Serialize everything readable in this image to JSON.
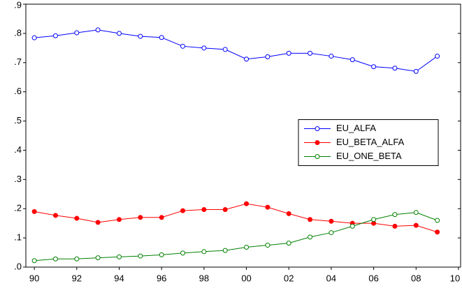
{
  "chart_data": {
    "type": "line",
    "x": [
      1990,
      1991,
      1992,
      1993,
      1994,
      1995,
      1996,
      1997,
      1998,
      1999,
      2000,
      2001,
      2002,
      2003,
      2004,
      2005,
      2006,
      2007,
      2008,
      2009
    ],
    "series": [
      {
        "name": "EU_ALFA",
        "color": "#0000ff",
        "marker": "open",
        "values": [
          0.785,
          0.792,
          0.802,
          0.812,
          0.8,
          0.79,
          0.786,
          0.756,
          0.75,
          0.745,
          0.712,
          0.72,
          0.732,
          0.732,
          0.722,
          0.71,
          0.686,
          0.681,
          0.67,
          0.722
        ]
      },
      {
        "name": "EU_BETA_ALFA",
        "color": "#ff0000",
        "marker": "filled",
        "values": [
          0.19,
          0.177,
          0.167,
          0.153,
          0.163,
          0.17,
          0.17,
          0.193,
          0.197,
          0.197,
          0.217,
          0.205,
          0.183,
          0.163,
          0.157,
          0.15,
          0.15,
          0.14,
          0.143,
          0.12
        ]
      },
      {
        "name": "EU_ONE_BETA",
        "color": "#008000",
        "marker": "open",
        "values": [
          0.022,
          0.028,
          0.028,
          0.032,
          0.035,
          0.038,
          0.042,
          0.048,
          0.053,
          0.057,
          0.068,
          0.075,
          0.082,
          0.103,
          0.118,
          0.14,
          0.163,
          0.18,
          0.187,
          0.16
        ]
      }
    ],
    "xlim": [
      1989.6,
      2010.1
    ],
    "xticks": [
      {
        "value": 1990,
        "label": "90"
      },
      {
        "value": 1992,
        "label": "92"
      },
      {
        "value": 1994,
        "label": "94"
      },
      {
        "value": 1996,
        "label": "96"
      },
      {
        "value": 1998,
        "label": "98"
      },
      {
        "value": 2000,
        "label": "00"
      },
      {
        "value": 2002,
        "label": "02"
      },
      {
        "value": 2004,
        "label": "04"
      },
      {
        "value": 2006,
        "label": "06"
      },
      {
        "value": 2008,
        "label": "08"
      },
      {
        "value": 2010,
        "label": "10"
      }
    ],
    "ylim": [
      0,
      0.9
    ],
    "yticks": [
      {
        "value": 0,
        "label": ".0"
      },
      {
        "value": 0.1,
        "label": ".1"
      },
      {
        "value": 0.2,
        "label": ".2"
      },
      {
        "value": 0.3,
        "label": ".3"
      },
      {
        "value": 0.4,
        "label": ".4"
      },
      {
        "value": 0.5,
        "label": ".5"
      },
      {
        "value": 0.6,
        "label": ".6"
      },
      {
        "value": 0.7,
        "label": ".7"
      },
      {
        "value": 0.8,
        "label": ".8"
      },
      {
        "value": 0.9,
        "label": ".9"
      }
    ],
    "legend": "center-right"
  }
}
